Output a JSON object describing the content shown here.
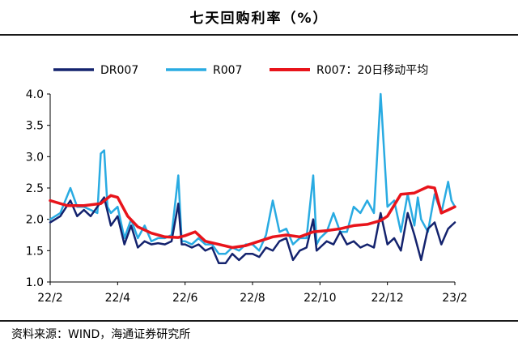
{
  "title": "七天回购利率（%）",
  "source": "资料来源：WIND，海通证券研究所",
  "chart_data": {
    "type": "line",
    "ylim": [
      1.0,
      4.0
    ],
    "yticks": [
      "1.0",
      "1.5",
      "2.0",
      "2.5",
      "3.0",
      "3.5",
      "4.0"
    ],
    "xtick_labels": [
      "22/2",
      "22/4",
      "22/6",
      "22/8",
      "22/10",
      "22/12",
      "23/2"
    ],
    "xlim": [
      0,
      12
    ],
    "legend": {
      "placement": "top"
    },
    "grid": false,
    "series": [
      {
        "name": "DR007",
        "color": "#14236e",
        "x": [
          0,
          0.3,
          0.6,
          0.8,
          1.0,
          1.2,
          1.4,
          1.6,
          1.8,
          2.0,
          2.2,
          2.4,
          2.6,
          2.8,
          3.0,
          3.2,
          3.4,
          3.6,
          3.8,
          3.9,
          4.0,
          4.2,
          4.4,
          4.6,
          4.8,
          5.0,
          5.2,
          5.4,
          5.6,
          5.8,
          6.0,
          6.2,
          6.4,
          6.6,
          6.8,
          7.0,
          7.2,
          7.4,
          7.6,
          7.8,
          7.9,
          8.0,
          8.2,
          8.4,
          8.6,
          8.8,
          9.0,
          9.2,
          9.4,
          9.6,
          9.8,
          10.0,
          10.2,
          10.4,
          10.6,
          10.8,
          11.0,
          11.2,
          11.4,
          11.6,
          11.8,
          11.9,
          12.0
        ],
        "y": [
          1.95,
          2.05,
          2.3,
          2.05,
          2.15,
          2.05,
          2.2,
          2.35,
          1.9,
          2.05,
          1.6,
          1.9,
          1.55,
          1.65,
          1.6,
          1.62,
          1.6,
          1.65,
          2.25,
          1.6,
          1.6,
          1.55,
          1.6,
          1.5,
          1.55,
          1.3,
          1.3,
          1.45,
          1.35,
          1.45,
          1.45,
          1.4,
          1.55,
          1.5,
          1.65,
          1.7,
          1.35,
          1.5,
          1.55,
          2.0,
          1.5,
          1.55,
          1.65,
          1.6,
          1.8,
          1.6,
          1.65,
          1.55,
          1.6,
          1.55,
          2.1,
          1.6,
          1.7,
          1.5,
          2.1,
          1.75,
          1.35,
          1.85,
          1.95,
          1.6,
          1.85,
          1.9,
          1.95
        ]
      },
      {
        "name": "R007",
        "color": "#29abe2",
        "x": [
          0,
          0.3,
          0.6,
          0.8,
          1.0,
          1.2,
          1.4,
          1.5,
          1.6,
          1.7,
          1.8,
          2.0,
          2.2,
          2.4,
          2.6,
          2.8,
          3.0,
          3.2,
          3.4,
          3.6,
          3.8,
          3.9,
          4.0,
          4.2,
          4.4,
          4.6,
          4.8,
          5.0,
          5.2,
          5.4,
          5.6,
          5.8,
          6.0,
          6.2,
          6.4,
          6.6,
          6.8,
          7.0,
          7.2,
          7.4,
          7.6,
          7.8,
          7.9,
          8.0,
          8.2,
          8.4,
          8.6,
          8.8,
          9.0,
          9.2,
          9.4,
          9.6,
          9.8,
          10.0,
          10.2,
          10.4,
          10.6,
          10.8,
          10.9,
          11.0,
          11.2,
          11.4,
          11.6,
          11.8,
          11.9,
          12.0
        ],
        "y": [
          2.0,
          2.1,
          2.5,
          2.2,
          2.2,
          2.15,
          2.1,
          3.05,
          3.1,
          2.2,
          2.1,
          2.2,
          1.7,
          2.0,
          1.7,
          1.9,
          1.65,
          1.7,
          1.7,
          1.75,
          2.7,
          1.65,
          1.65,
          1.6,
          1.7,
          1.6,
          1.6,
          1.45,
          1.45,
          1.55,
          1.5,
          1.6,
          1.6,
          1.5,
          1.75,
          2.3,
          1.8,
          1.85,
          1.6,
          1.7,
          1.7,
          2.7,
          1.6,
          1.7,
          1.8,
          2.1,
          1.8,
          1.8,
          2.2,
          2.1,
          2.3,
          2.1,
          4.0,
          2.2,
          2.3,
          1.8,
          2.4,
          1.9,
          2.35,
          2.0,
          1.8,
          2.4,
          2.1,
          2.6,
          2.3,
          2.2
        ]
      },
      {
        "name": "R007：20日移动平均",
        "color": "#e8141b",
        "x": [
          0,
          0.5,
          1.0,
          1.5,
          1.8,
          2.0,
          2.3,
          2.6,
          3.0,
          3.4,
          3.8,
          4.0,
          4.3,
          4.6,
          5.0,
          5.4,
          5.8,
          6.2,
          6.6,
          7.0,
          7.4,
          7.8,
          8.2,
          8.6,
          9.0,
          9.4,
          9.8,
          10.0,
          10.4,
          10.8,
          11.0,
          11.2,
          11.4,
          11.6,
          11.8,
          12.0
        ],
        "y": [
          2.3,
          2.22,
          2.22,
          2.25,
          2.38,
          2.35,
          2.05,
          1.88,
          1.78,
          1.72,
          1.71,
          1.74,
          1.8,
          1.65,
          1.6,
          1.55,
          1.58,
          1.65,
          1.72,
          1.75,
          1.72,
          1.8,
          1.82,
          1.85,
          1.9,
          1.92,
          1.98,
          2.05,
          2.4,
          2.42,
          2.47,
          2.52,
          2.5,
          2.1,
          2.15,
          2.2
        ]
      }
    ]
  }
}
